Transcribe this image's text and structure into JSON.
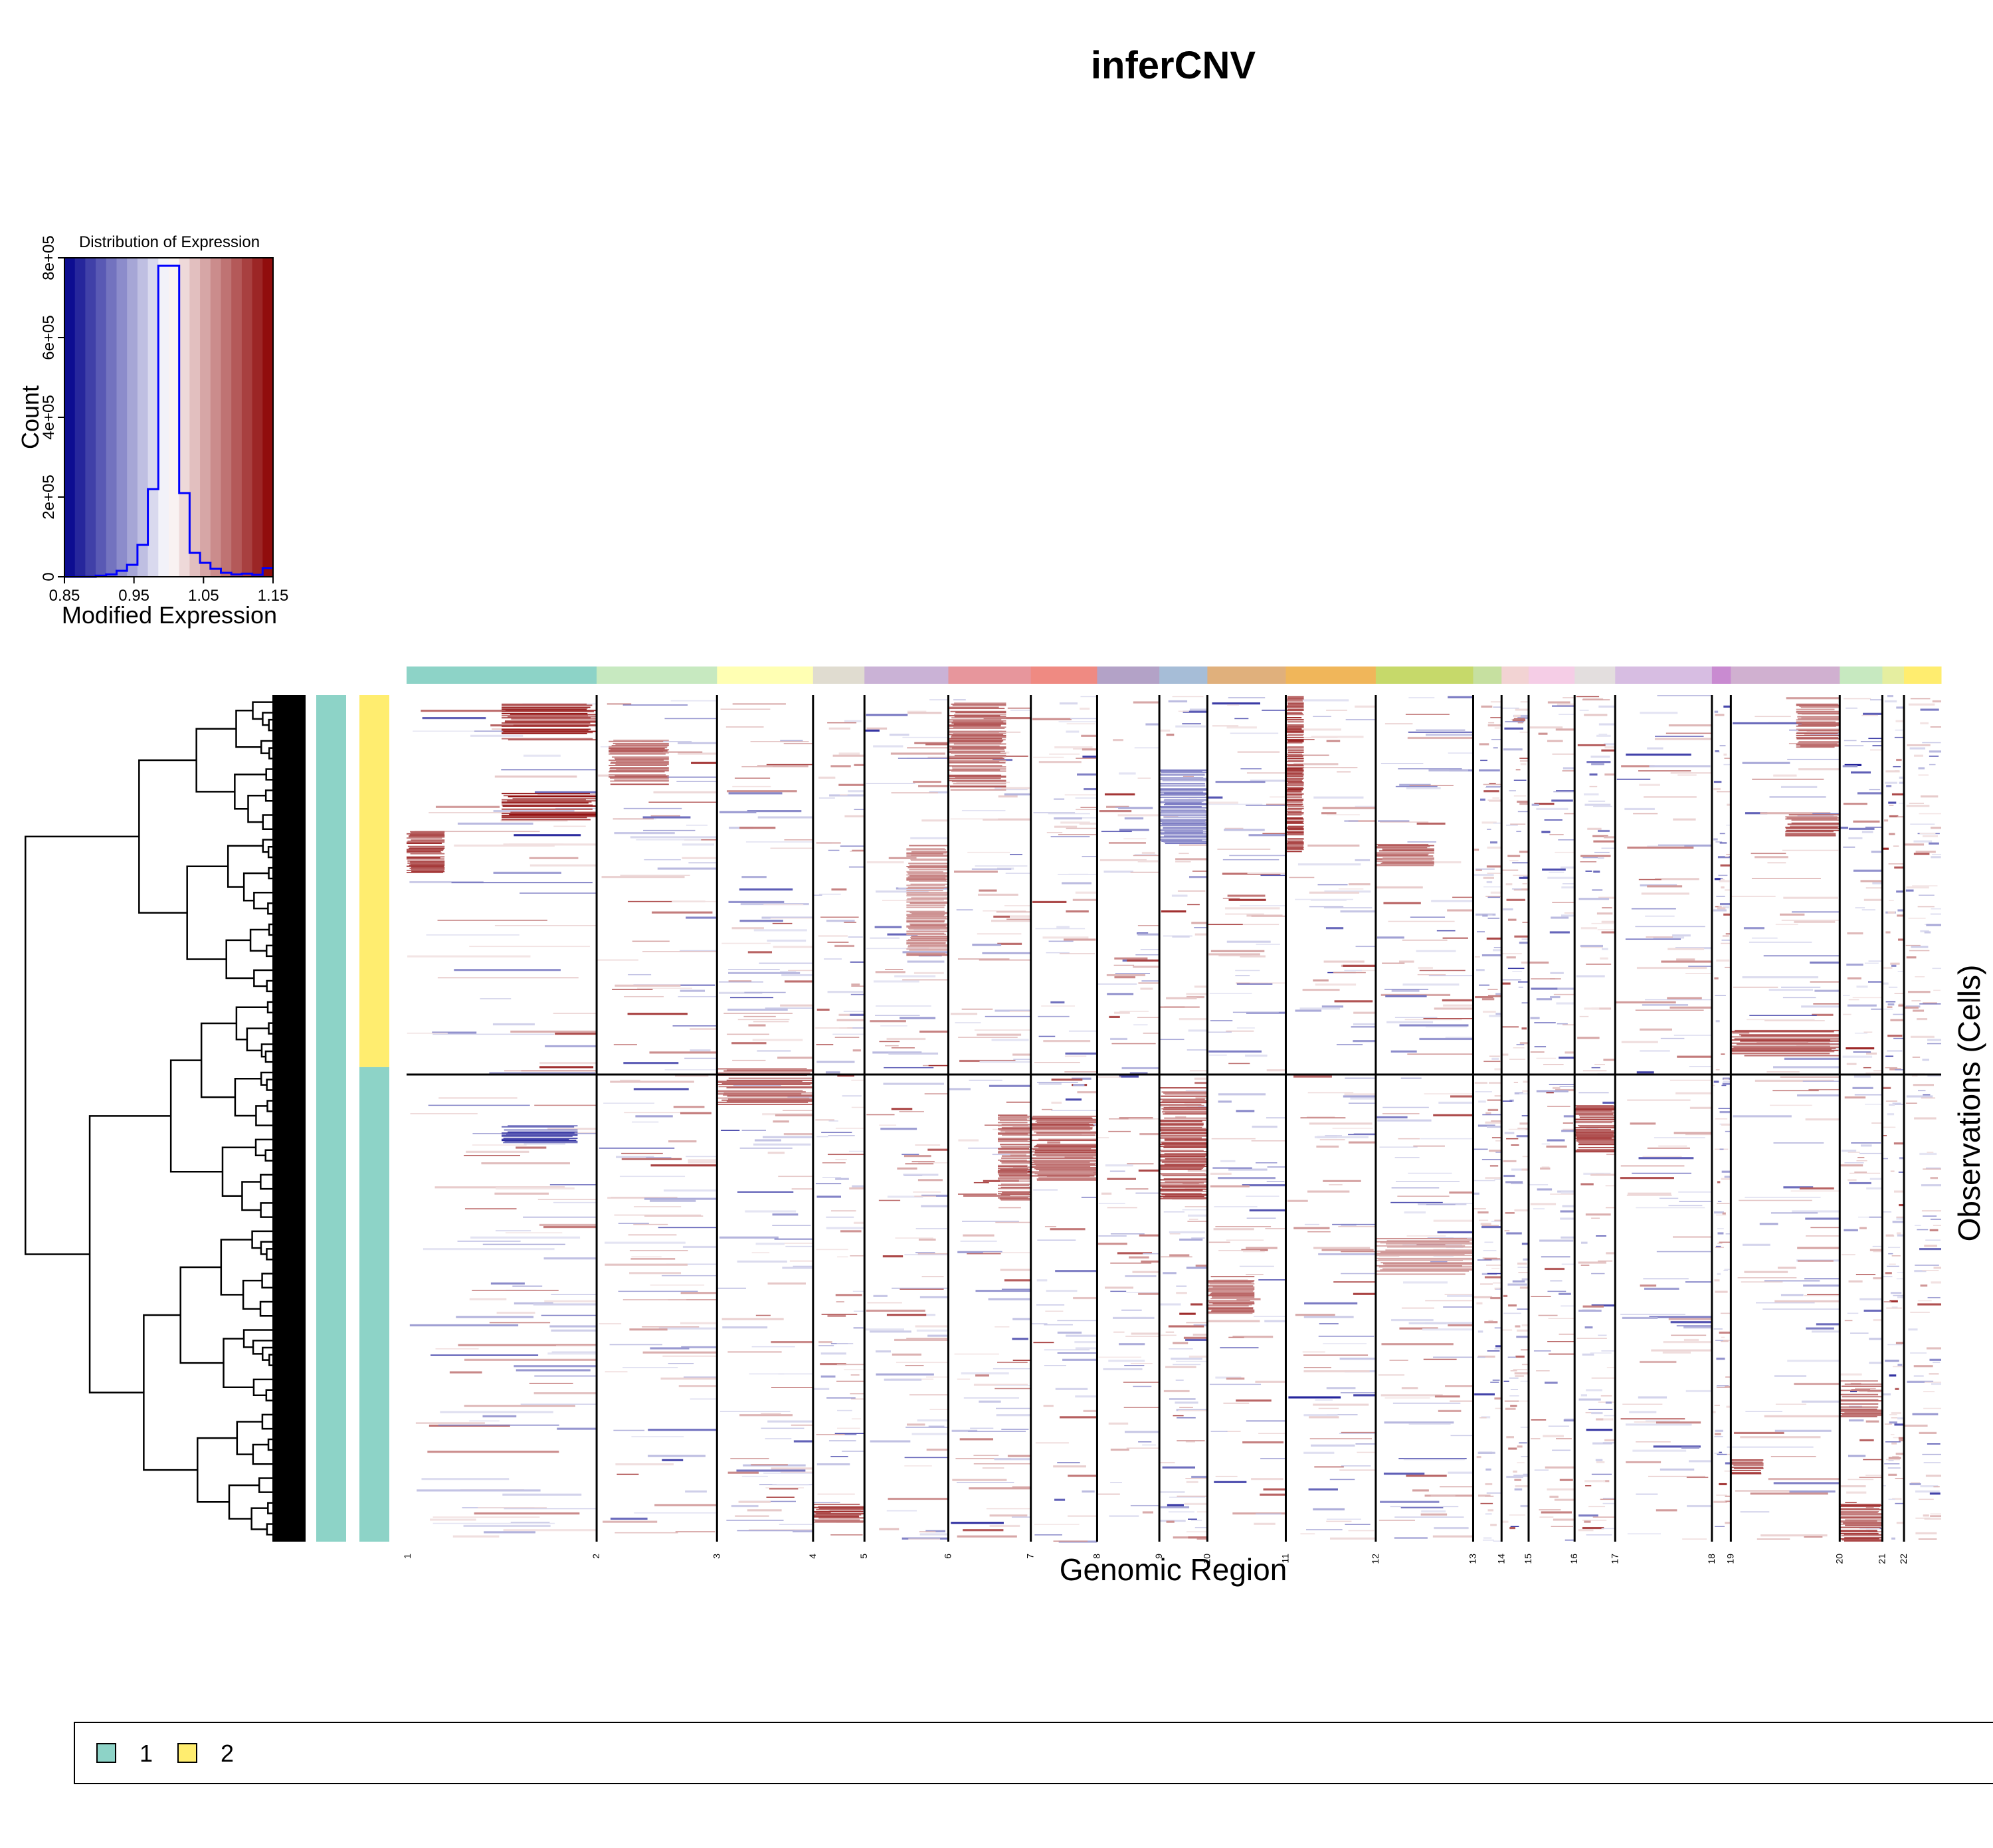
{
  "chart_data": {
    "type": "heatmap",
    "title": "inferCNV",
    "xlabel": "Genomic Region",
    "ylabel": "Observations (Cells)",
    "chromosomes": [
      "1",
      "2",
      "3",
      "4",
      "5",
      "6",
      "7",
      "8",
      "9",
      "10",
      "11",
      "12",
      "13",
      "14",
      "15",
      "16",
      "17",
      "18",
      "19",
      "20",
      "21",
      "22"
    ],
    "chromosome_gene_counts": [
      281,
      178,
      142,
      76,
      124,
      122,
      98,
      92,
      71,
      116,
      133,
      144,
      42,
      40,
      68,
      60,
      143,
      28,
      161,
      63,
      32,
      55
    ],
    "chromosome_colors": [
      "#8dd3c7",
      "#c7e9c0",
      "#ffffb3",
      "#e0dcd0",
      "#cab2d6",
      "#e7969c",
      "#ef8a82",
      "#b3a2c7",
      "#a6bdd7",
      "#e0b07c",
      "#f0b65a",
      "#c6d96a",
      "#c6e0a0",
      "#f2d3d3",
      "#f5cde6",
      "#e3dede",
      "#d7bde2",
      "#c98bd1",
      "#d0b0d0",
      "#c7e9c0",
      "#e5eea0",
      "#ffed6f"
    ],
    "groups": [
      {
        "name": "2",
        "color": "#ffed6f",
        "rows": 356
      },
      {
        "name": "1",
        "color": "#8dd3c7",
        "rows": 454
      }
    ],
    "value_range": [
      0.85,
      1.15
    ],
    "color_scale": [
      "#00008b",
      "#ffffff",
      "#8b0000"
    ],
    "histogram": {
      "title": "Distribution of Expression",
      "xlabel": "Modified Expression",
      "ylabel": "Count",
      "x_ticks": [
        "0.85",
        "0.95",
        "1.05",
        "1.15"
      ],
      "y_ticks": [
        "0",
        "2e+05",
        "4e+05",
        "6e+05",
        "8e+05"
      ],
      "ylim": [
        0,
        800000
      ],
      "bin_edges": [
        0.85,
        0.865,
        0.88,
        0.895,
        0.91,
        0.925,
        0.94,
        0.955,
        0.97,
        0.985,
        1.0,
        1.015,
        1.03,
        1.045,
        1.06,
        1.075,
        1.09,
        1.105,
        1.12,
        1.135,
        1.15
      ],
      "counts": [
        0,
        0,
        0,
        3000,
        6000,
        15000,
        30000,
        80000,
        220000,
        780000,
        780000,
        210000,
        60000,
        35000,
        20000,
        10000,
        6000,
        8000,
        5000,
        22000
      ],
      "line_color": "#0000ff"
    },
    "legend": {
      "entries": [
        {
          "label": "1",
          "color": "#8dd3c7"
        },
        {
          "label": "2",
          "color": "#ffed6f"
        }
      ]
    },
    "features": [
      {
        "group": "2",
        "chrom": "1",
        "start": 0.5,
        "end": 1.0,
        "rowStart": 0.02,
        "rowEnd": 0.12,
        "value": 1.14
      },
      {
        "group": "2",
        "chrom": "1",
        "start": 0.5,
        "end": 1.0,
        "rowStart": 0.26,
        "rowEnd": 0.34,
        "value": 1.15
      },
      {
        "group": "2",
        "chrom": "1",
        "start": 0.0,
        "end": 0.2,
        "rowStart": 0.36,
        "rowEnd": 0.48,
        "value": 1.13
      },
      {
        "group": "2",
        "chrom": "2",
        "start": 0.1,
        "end": 0.6,
        "rowStart": 0.12,
        "rowEnd": 0.24,
        "value": 1.1
      },
      {
        "group": "2",
        "chrom": "6",
        "start": 0.0,
        "end": 0.7,
        "rowStart": 0.02,
        "rowEnd": 0.26,
        "value": 1.1
      },
      {
        "group": "2",
        "chrom": "11",
        "start": 0.0,
        "end": 0.2,
        "rowStart": 0.0,
        "rowEnd": 0.42,
        "value": 1.13
      },
      {
        "group": "2",
        "chrom": "19",
        "start": 0.6,
        "end": 1.0,
        "rowStart": 0.02,
        "rowEnd": 0.14,
        "value": 1.1
      },
      {
        "group": "2",
        "chrom": "19",
        "start": 0.5,
        "end": 1.0,
        "rowStart": 0.32,
        "rowEnd": 0.38,
        "value": 1.12
      },
      {
        "group": "2",
        "chrom": "19",
        "start": 0.0,
        "end": 1.0,
        "rowStart": 0.9,
        "rowEnd": 0.98,
        "value": 1.12
      },
      {
        "group": "2",
        "chrom": "12",
        "start": 0.0,
        "end": 0.6,
        "rowStart": 0.4,
        "rowEnd": 0.46,
        "value": 1.1
      },
      {
        "group": "2",
        "chrom": "9",
        "start": 0.0,
        "end": 1.0,
        "rowStart": 0.2,
        "rowEnd": 0.4,
        "value": 0.92
      },
      {
        "group": "2",
        "chrom": "5",
        "start": 0.5,
        "end": 1.0,
        "rowStart": 0.4,
        "rowEnd": 0.7,
        "value": 1.08
      },
      {
        "group": "1",
        "chrom": "3",
        "start": 0.0,
        "end": 1.0,
        "rowStart": 0.0,
        "rowEnd": 0.08,
        "value": 1.1
      },
      {
        "group": "1",
        "chrom": "9",
        "start": 0.0,
        "end": 1.0,
        "rowStart": 0.04,
        "rowEnd": 0.28,
        "value": 1.12
      },
      {
        "group": "1",
        "chrom": "7",
        "start": 0.0,
        "end": 1.0,
        "rowStart": 0.1,
        "rowEnd": 0.24,
        "value": 1.11
      },
      {
        "group": "1",
        "chrom": "6",
        "start": 0.6,
        "end": 1.0,
        "rowStart": 0.1,
        "rowEnd": 0.28,
        "value": 1.1
      },
      {
        "group": "1",
        "chrom": "16",
        "start": 0.0,
        "end": 1.0,
        "rowStart": 0.08,
        "rowEnd": 0.18,
        "value": 1.12
      },
      {
        "group": "1",
        "chrom": "10",
        "start": 0.0,
        "end": 0.6,
        "rowStart": 0.44,
        "rowEnd": 0.52,
        "value": 1.1
      },
      {
        "group": "1",
        "chrom": "20",
        "start": 0.0,
        "end": 1.0,
        "rowStart": 0.66,
        "rowEnd": 0.74,
        "value": 1.1
      },
      {
        "group": "1",
        "chrom": "20",
        "start": 0.0,
        "end": 1.0,
        "rowStart": 0.92,
        "rowEnd": 1.0,
        "value": 1.12
      },
      {
        "group": "1",
        "chrom": "4",
        "start": 0.0,
        "end": 1.0,
        "rowStart": 0.92,
        "rowEnd": 0.96,
        "value": 1.13
      },
      {
        "group": "1",
        "chrom": "1",
        "start": 0.5,
        "end": 0.9,
        "rowStart": 0.12,
        "rowEnd": 0.16,
        "value": 0.87
      },
      {
        "group": "1",
        "chrom": "19",
        "start": 0.0,
        "end": 0.3,
        "rowStart": 0.82,
        "rowEnd": 0.86,
        "value": 1.12
      },
      {
        "group": "1",
        "chrom": "12",
        "start": 0.0,
        "end": 1.0,
        "rowStart": 0.36,
        "rowEnd": 0.44,
        "value": 1.07
      }
    ]
  }
}
